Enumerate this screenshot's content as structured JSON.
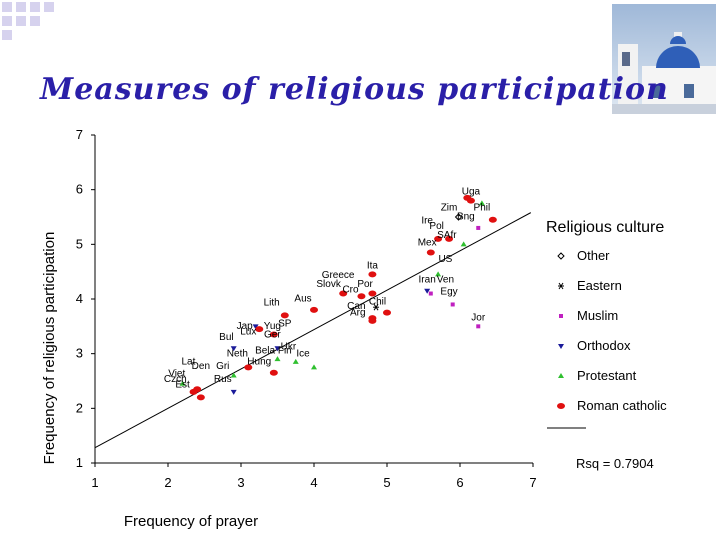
{
  "slide": {
    "title": "Measures of religious participation"
  },
  "chart_data": {
    "type": "scatter",
    "title": "",
    "xlabel": "Frequency of prayer",
    "ylabel": "Frequency of religious participation",
    "xlim": [
      1,
      7
    ],
    "ylim": [
      1,
      7
    ],
    "xticks": [
      1,
      2,
      3,
      4,
      5,
      6,
      7
    ],
    "yticks": [
      1,
      2,
      3,
      4,
      5,
      6,
      7
    ],
    "legend_title": "Religious culture",
    "legend_position": "right",
    "rsq_label": "Rsq = 0.7904",
    "fit_line": {
      "x": [
        1,
        6.97
      ],
      "y": [
        1.28,
        5.58
      ]
    },
    "series": [
      {
        "name": "Other",
        "marker": "diamond",
        "color": "#000000",
        "points": [
          {
            "x": 5.98,
            "y": 5.5,
            "label": ""
          }
        ]
      },
      {
        "name": "Eastern",
        "marker": "star",
        "color": "#000000",
        "points": [
          {
            "x": 4.85,
            "y": 3.85,
            "label": ""
          }
        ]
      },
      {
        "name": "Muslim",
        "marker": "square",
        "color": "#c020c0",
        "points": [
          {
            "x": 5.6,
            "y": 4.1,
            "label": ""
          },
          {
            "x": 5.9,
            "y": 3.9,
            "label": ""
          },
          {
            "x": 6.25,
            "y": 3.5,
            "label": "Jor"
          },
          {
            "x": 6.25,
            "y": 5.3,
            "label": ""
          }
        ]
      },
      {
        "name": "Orthodox",
        "marker": "triangle-down",
        "color": "#1a1a9a",
        "points": [
          {
            "x": 2.9,
            "y": 3.1,
            "label": ""
          },
          {
            "x": 2.9,
            "y": 2.3,
            "label": ""
          },
          {
            "x": 3.2,
            "y": 3.5,
            "label": ""
          },
          {
            "x": 3.5,
            "y": 3.1,
            "label": ""
          },
          {
            "x": 5.55,
            "y": 4.15,
            "label": ""
          }
        ]
      },
      {
        "name": "Protestant",
        "marker": "triangle-up",
        "color": "#30c030",
        "points": [
          {
            "x": 6.3,
            "y": 5.75,
            "label": ""
          },
          {
            "x": 6.05,
            "y": 5.0,
            "label": ""
          },
          {
            "x": 5.7,
            "y": 4.45,
            "label": ""
          },
          {
            "x": 3.75,
            "y": 2.85,
            "label": ""
          },
          {
            "x": 4.0,
            "y": 2.75,
            "label": ""
          },
          {
            "x": 2.9,
            "y": 2.6,
            "label": ""
          },
          {
            "x": 2.2,
            "y": 2.45,
            "label": ""
          },
          {
            "x": 3.5,
            "y": 2.9,
            "label": ""
          }
        ]
      },
      {
        "name": "Roman catholic",
        "marker": "ellipse",
        "color": "#e01010",
        "points": [
          {
            "x": 6.15,
            "y": 5.8,
            "label": "Uga"
          },
          {
            "x": 6.1,
            "y": 5.85,
            "label": ""
          },
          {
            "x": 6.45,
            "y": 5.45,
            "label": ""
          },
          {
            "x": 5.7,
            "y": 5.1,
            "label": ""
          },
          {
            "x": 5.85,
            "y": 5.1,
            "label": ""
          },
          {
            "x": 5.6,
            "y": 4.85,
            "label": ""
          },
          {
            "x": 4.8,
            "y": 4.45,
            "label": "Ita"
          },
          {
            "x": 4.4,
            "y": 4.1,
            "label": ""
          },
          {
            "x": 4.65,
            "y": 4.05,
            "label": ""
          },
          {
            "x": 4.8,
            "y": 4.1,
            "label": ""
          },
          {
            "x": 5.0,
            "y": 3.75,
            "label": ""
          },
          {
            "x": 4.8,
            "y": 3.6,
            "label": ""
          },
          {
            "x": 4.8,
            "y": 3.65,
            "label": ""
          },
          {
            "x": 4.0,
            "y": 3.8,
            "label": ""
          },
          {
            "x": 3.6,
            "y": 3.7,
            "label": ""
          },
          {
            "x": 3.25,
            "y": 3.45,
            "label": ""
          },
          {
            "x": 3.45,
            "y": 3.35,
            "label": ""
          },
          {
            "x": 3.1,
            "y": 2.75,
            "label": ""
          },
          {
            "x": 3.45,
            "y": 2.65,
            "label": ""
          },
          {
            "x": 2.45,
            "y": 2.2,
            "label": ""
          },
          {
            "x": 2.4,
            "y": 2.35,
            "label": ""
          },
          {
            "x": 2.35,
            "y": 2.3,
            "label": ""
          }
        ]
      }
    ],
    "point_labels": [
      {
        "text": "Zim",
        "x": 5.85,
        "y": 5.62
      },
      {
        "text": "Phil",
        "x": 6.3,
        "y": 5.62
      },
      {
        "text": "Bng",
        "x": 6.08,
        "y": 5.45
      },
      {
        "text": "Ire",
        "x": 5.55,
        "y": 5.38
      },
      {
        "text": "Pol",
        "x": 5.68,
        "y": 5.28
      },
      {
        "text": "SAfr",
        "x": 5.82,
        "y": 5.12
      },
      {
        "text": "Mex",
        "x": 5.55,
        "y": 4.98
      },
      {
        "text": "US",
        "x": 5.8,
        "y": 4.68
      },
      {
        "text": "Iran",
        "x": 5.55,
        "y": 4.3
      },
      {
        "text": "Ven",
        "x": 5.8,
        "y": 4.3
      },
      {
        "text": "Egy",
        "x": 5.85,
        "y": 4.08
      },
      {
        "text": "Greece",
        "x": 4.33,
        "y": 4.38
      },
      {
        "text": "Slovk",
        "x": 4.2,
        "y": 4.22
      },
      {
        "text": "Por",
        "x": 4.7,
        "y": 4.22
      },
      {
        "text": "Cro",
        "x": 4.5,
        "y": 4.12
      },
      {
        "text": "Aus",
        "x": 3.85,
        "y": 3.95
      },
      {
        "text": "Lith",
        "x": 3.42,
        "y": 3.88
      },
      {
        "text": "Chil",
        "x": 4.87,
        "y": 3.9
      },
      {
        "text": "Can",
        "x": 4.58,
        "y": 3.82
      },
      {
        "text": "Arg",
        "x": 4.6,
        "y": 3.7
      },
      {
        "text": "SP",
        "x": 3.6,
        "y": 3.5
      },
      {
        "text": "Jap",
        "x": 3.05,
        "y": 3.45
      },
      {
        "text": "Yug",
        "x": 3.43,
        "y": 3.45
      },
      {
        "text": "Lux",
        "x": 3.1,
        "y": 3.35
      },
      {
        "text": "Ger",
        "x": 3.43,
        "y": 3.3
      },
      {
        "text": "Bul",
        "x": 2.8,
        "y": 3.25
      },
      {
        "text": "Ukr",
        "x": 3.65,
        "y": 3.08
      },
      {
        "text": "Bela",
        "x": 3.33,
        "y": 3.0
      },
      {
        "text": "Fin",
        "x": 3.6,
        "y": 3.0
      },
      {
        "text": "Neth",
        "x": 2.95,
        "y": 2.95
      },
      {
        "text": "Ice",
        "x": 3.85,
        "y": 2.95
      },
      {
        "text": "Hung",
        "x": 3.25,
        "y": 2.8
      },
      {
        "text": "Lat",
        "x": 2.28,
        "y": 2.8
      },
      {
        "text": "Den",
        "x": 2.45,
        "y": 2.72
      },
      {
        "text": "Gri",
        "x": 2.75,
        "y": 2.72
      },
      {
        "text": "Viet",
        "x": 2.12,
        "y": 2.58
      },
      {
        "text": "Czch",
        "x": 2.1,
        "y": 2.48
      },
      {
        "text": "Rus",
        "x": 2.75,
        "y": 2.48
      },
      {
        "text": "Est",
        "x": 2.2,
        "y": 2.38
      }
    ]
  }
}
